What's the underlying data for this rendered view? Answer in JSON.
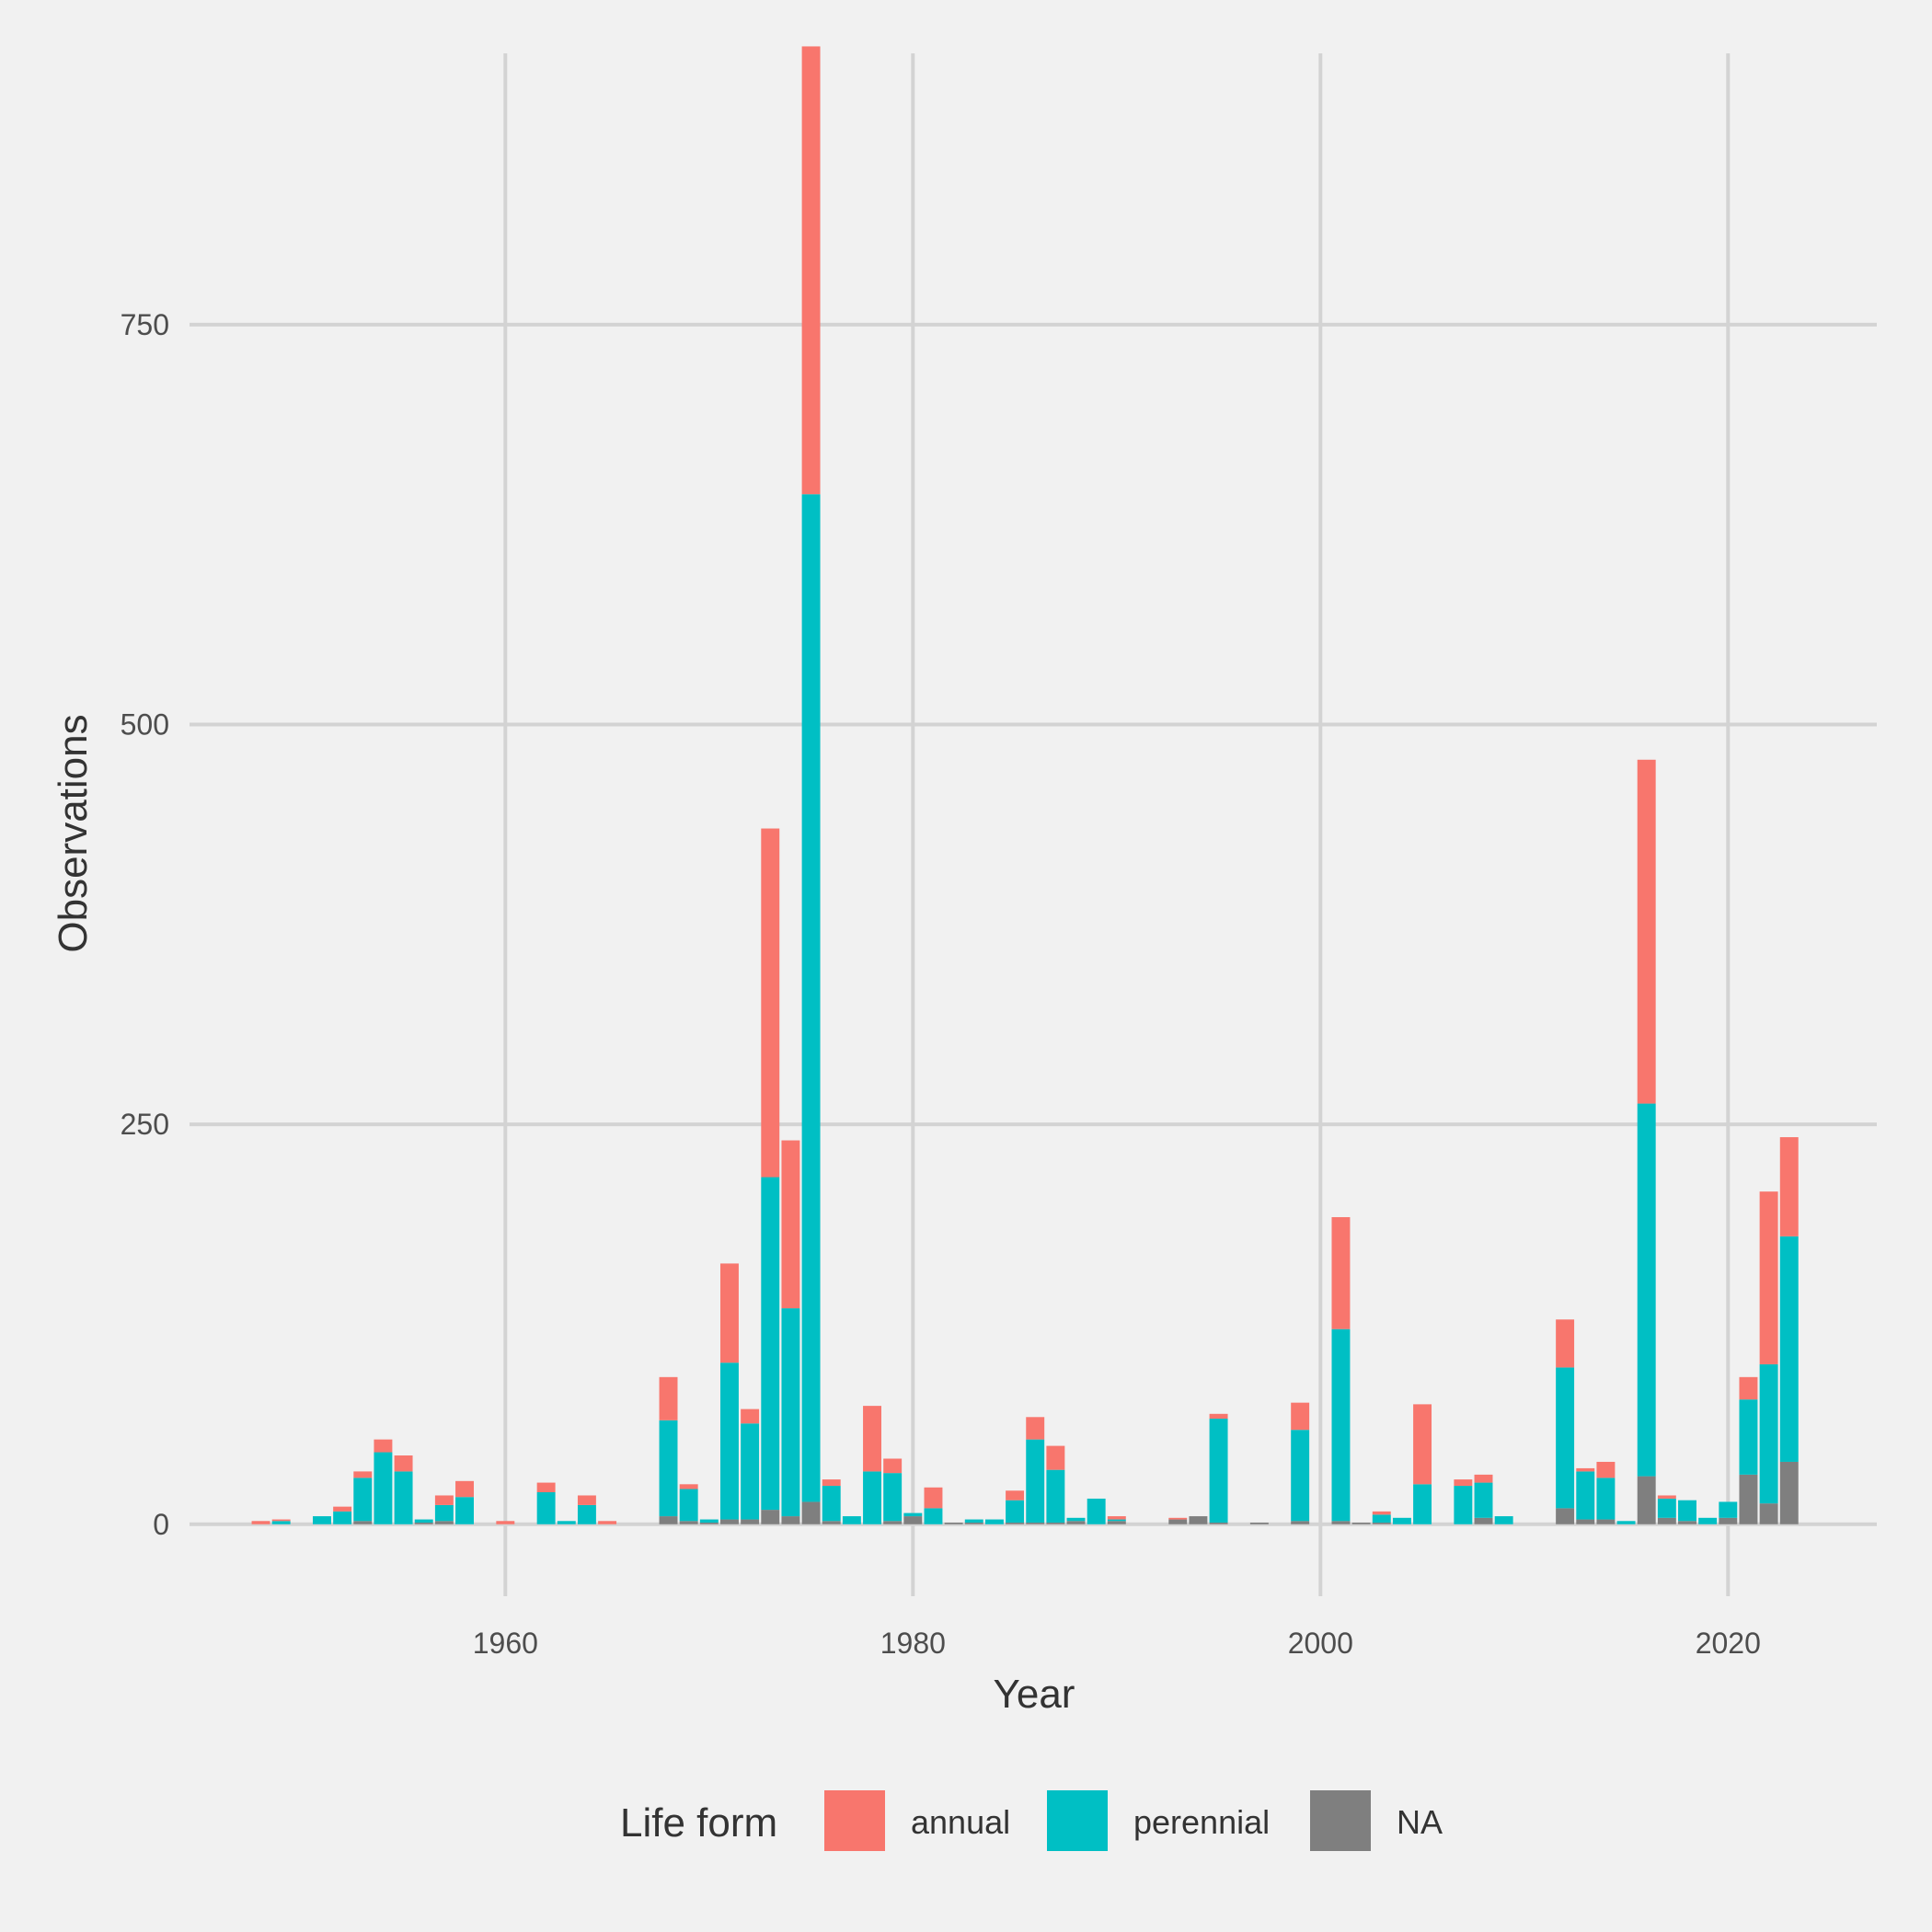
{
  "chart_data": {
    "type": "bar",
    "stacked": true,
    "title": "",
    "xlabel": "Year",
    "ylabel": "Observations",
    "xlim": [
      1944.5,
      2027.3
    ],
    "ylim": [
      -45,
      930
    ],
    "x_ticks": [
      1960,
      1980,
      2000,
      2020
    ],
    "y_ticks": [
      0,
      250,
      500,
      750
    ],
    "grid": true,
    "legend": {
      "title": "Life form",
      "position": "bottom"
    },
    "series": [
      {
        "name": "annual",
        "color": "#f8766d",
        "points": [
          [
            1948,
            2
          ],
          [
            1949,
            1
          ],
          [
            1952,
            3
          ],
          [
            1953,
            4
          ],
          [
            1954,
            8
          ],
          [
            1955,
            10
          ],
          [
            1957,
            6
          ],
          [
            1958,
            10
          ],
          [
            1960,
            2
          ],
          [
            1962,
            6
          ],
          [
            1964,
            6
          ],
          [
            1965,
            2
          ],
          [
            1968,
            27
          ],
          [
            1969,
            3
          ],
          [
            1971,
            62
          ],
          [
            1972,
            9
          ],
          [
            1973,
            218
          ],
          [
            1974,
            105
          ],
          [
            1975,
            280
          ],
          [
            1976,
            4
          ],
          [
            1978,
            41
          ],
          [
            1979,
            9
          ],
          [
            1981,
            13
          ],
          [
            1985,
            6
          ],
          [
            1986,
            14
          ],
          [
            1987,
            15
          ],
          [
            1990,
            2
          ],
          [
            1993,
            1
          ],
          [
            1995,
            3
          ],
          [
            1999,
            17
          ],
          [
            2001,
            70
          ],
          [
            2003,
            2
          ],
          [
            2005,
            50
          ],
          [
            2007,
            4
          ],
          [
            2008,
            5
          ],
          [
            2012,
            30
          ],
          [
            2013,
            2
          ],
          [
            2014,
            10
          ],
          [
            2016,
            215
          ],
          [
            2017,
            2
          ],
          [
            2021,
            14
          ],
          [
            2022,
            108
          ],
          [
            2023,
            62
          ]
        ]
      },
      {
        "name": "perennial",
        "color": "#00bfc4",
        "points": [
          [
            1949,
            2
          ],
          [
            1951,
            5
          ],
          [
            1952,
            8
          ],
          [
            1953,
            27
          ],
          [
            1954,
            45
          ],
          [
            1955,
            33
          ],
          [
            1956,
            2
          ],
          [
            1957,
            10
          ],
          [
            1958,
            17
          ],
          [
            1962,
            20
          ],
          [
            1963,
            2
          ],
          [
            1964,
            12
          ],
          [
            1968,
            60
          ],
          [
            1969,
            20
          ],
          [
            1970,
            2
          ],
          [
            1971,
            98
          ],
          [
            1972,
            60
          ],
          [
            1973,
            208
          ],
          [
            1974,
            130
          ],
          [
            1975,
            630
          ],
          [
            1976,
            22
          ],
          [
            1977,
            5
          ],
          [
            1978,
            33
          ],
          [
            1979,
            30
          ],
          [
            1980,
            2
          ],
          [
            1981,
            10
          ],
          [
            1983,
            2
          ],
          [
            1984,
            3
          ],
          [
            1985,
            14
          ],
          [
            1986,
            52
          ],
          [
            1987,
            33
          ],
          [
            1988,
            2
          ],
          [
            1989,
            16
          ],
          [
            1990,
            1
          ],
          [
            1995,
            65
          ],
          [
            1999,
            57
          ],
          [
            2001,
            120
          ],
          [
            2003,
            5
          ],
          [
            2004,
            4
          ],
          [
            2005,
            25
          ],
          [
            2007,
            24
          ],
          [
            2008,
            22
          ],
          [
            2009,
            5
          ],
          [
            2012,
            88
          ],
          [
            2013,
            30
          ],
          [
            2014,
            26
          ],
          [
            2015,
            2
          ],
          [
            2016,
            233
          ],
          [
            2017,
            12
          ],
          [
            2018,
            13
          ],
          [
            2019,
            4
          ],
          [
            2020,
            10
          ],
          [
            2021,
            47
          ],
          [
            2022,
            87
          ],
          [
            2023,
            141
          ]
        ]
      },
      {
        "name": "NA",
        "color": "#7f7f7f",
        "points": [
          [
            1953,
            2
          ],
          [
            1956,
            1
          ],
          [
            1957,
            2
          ],
          [
            1968,
            5
          ],
          [
            1969,
            2
          ],
          [
            1970,
            1
          ],
          [
            1971,
            3
          ],
          [
            1972,
            3
          ],
          [
            1973,
            9
          ],
          [
            1974,
            5
          ],
          [
            1975,
            14
          ],
          [
            1976,
            2
          ],
          [
            1979,
            2
          ],
          [
            1980,
            5
          ],
          [
            1982,
            1
          ],
          [
            1983,
            1
          ],
          [
            1985,
            1
          ],
          [
            1986,
            1
          ],
          [
            1987,
            1
          ],
          [
            1988,
            2
          ],
          [
            1990,
            2
          ],
          [
            1993,
            3
          ],
          [
            1994,
            5
          ],
          [
            1995,
            1
          ],
          [
            1997,
            1
          ],
          [
            1999,
            2
          ],
          [
            2001,
            2
          ],
          [
            2002,
            1
          ],
          [
            2003,
            1
          ],
          [
            2008,
            4
          ],
          [
            2012,
            10
          ],
          [
            2013,
            3
          ],
          [
            2014,
            3
          ],
          [
            2016,
            30
          ],
          [
            2017,
            4
          ],
          [
            2018,
            2
          ],
          [
            2020,
            4
          ],
          [
            2021,
            31
          ],
          [
            2022,
            13
          ],
          [
            2023,
            39
          ]
        ]
      }
    ]
  }
}
